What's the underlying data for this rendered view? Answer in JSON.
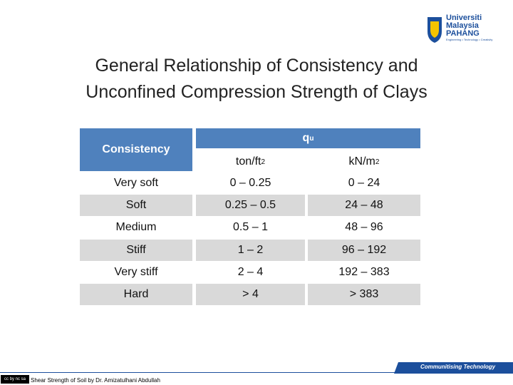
{
  "logo": {
    "lines": [
      "Universiti",
      "Malaysia",
      "PAHANG"
    ],
    "tagline": "Engineering • Technology • Creativity"
  },
  "title": {
    "lines": [
      "General Relationship of Consistency and",
      "Unconfined Compression Strength of Clays"
    ]
  },
  "table": {
    "header": {
      "consistency": "Consistency",
      "symbol": "q",
      "subscript": "u"
    },
    "units": [
      {
        "text": "ton/ft",
        "sup": "2"
      },
      {
        "text": "kN/m",
        "sup": "2"
      }
    ],
    "rows": [
      [
        "Very soft",
        "0 – 0.25",
        "0 – 24"
      ],
      [
        "Soft",
        "0.25 – 0.5",
        "24 – 48"
      ],
      [
        "Medium",
        "0.5 – 1",
        "48 – 96"
      ],
      [
        "Stiff",
        "1 – 2",
        "96 – 192"
      ],
      [
        "Very stiff",
        "2 – 4",
        "192 – 383"
      ],
      [
        "Hard",
        "> 4",
        "> 383"
      ]
    ]
  },
  "footer": {
    "banner": "Communitising Technology",
    "credit": "Shear Strength of Soil by Dr. Amizatulhani Abdullah",
    "license_icon": "cc by nc sa"
  }
}
